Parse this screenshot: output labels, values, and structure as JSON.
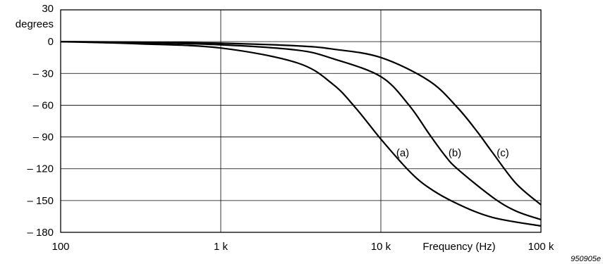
{
  "chart_data": {
    "type": "line",
    "title": "",
    "xlabel": "Frequency (Hz)",
    "ylabel": "degrees",
    "x_scale": "log",
    "xlim": [
      100,
      100000
    ],
    "ylim": [
      -180,
      30
    ],
    "x_ticks": [
      100,
      1000,
      10000,
      100000
    ],
    "x_tick_labels": [
      "100",
      "1 k",
      "10 k",
      "100 k"
    ],
    "y_ticks": [
      30,
      0,
      -30,
      -60,
      -90,
      -120,
      -150,
      -180
    ],
    "y_tick_labels": [
      "30",
      "0",
      "– 30",
      "– 60",
      "– 90",
      "– 120",
      "– 150",
      "– 180"
    ],
    "grid": true,
    "series": [
      {
        "name": "(a)",
        "x": [
          100,
          300,
          1000,
          3000,
          5000,
          7000,
          10000,
          15000,
          20000,
          30000,
          50000,
          100000
        ],
        "y": [
          0,
          -2,
          -6,
          -20,
          -40,
          -63,
          -92,
          -122,
          -138,
          -153,
          -166,
          -174
        ]
      },
      {
        "name": "(b)",
        "x": [
          100,
          300,
          1000,
          3000,
          5000,
          10000,
          15000,
          20000,
          25000,
          30000,
          50000,
          70000,
          100000
        ],
        "y": [
          0,
          -1,
          -3,
          -8,
          -16,
          -33,
          -60,
          -87,
          -107,
          -120,
          -147,
          -160,
          -168
        ]
      },
      {
        "name": "(c)",
        "x": [
          100,
          300,
          1000,
          3000,
          5000,
          10000,
          20000,
          30000,
          40000,
          50000,
          70000,
          100000
        ],
        "y": [
          0,
          -0.5,
          -1.5,
          -4,
          -7,
          -15,
          -37,
          -62,
          -85,
          -105,
          -134,
          -154
        ]
      }
    ],
    "annotations": [
      "(a)",
      "(b)",
      "(c)"
    ],
    "footnote": "950905e"
  }
}
